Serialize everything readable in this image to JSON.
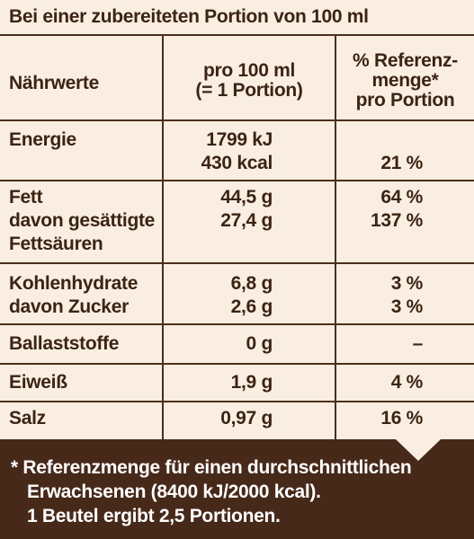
{
  "header": "Bei einer zubereiteten Portion von 100 ml",
  "columns": {
    "c1": "Nährwerte",
    "c2": [
      "pro 100 ml",
      "(= 1 Portion)"
    ],
    "c3": [
      "% Referenz-",
      "menge*",
      "pro Portion"
    ]
  },
  "rows": [
    {
      "name": [
        "Energie",
        ""
      ],
      "value": [
        "1799 kJ",
        "430 kcal"
      ],
      "ref": [
        "",
        "21 %"
      ]
    },
    {
      "name": [
        "Fett",
        "davon gesättigte",
        "Fettsäuren"
      ],
      "value": [
        "44,5 g",
        "27,4 g",
        ""
      ],
      "ref": [
        "64 %",
        "137 %",
        ""
      ]
    },
    {
      "name": [
        "Kohlenhydrate",
        "davon Zucker"
      ],
      "value": [
        "6,8 g",
        "2,6 g"
      ],
      "ref": [
        "3 %",
        "3 %"
      ]
    },
    {
      "name": [
        "Ballaststoffe"
      ],
      "value": [
        "0 g"
      ],
      "ref": [
        "–"
      ]
    },
    {
      "name": [
        "Eiweiß"
      ],
      "value": [
        "1,9 g"
      ],
      "ref": [
        "4 %"
      ]
    },
    {
      "name": [
        "Salz"
      ],
      "value": [
        "0,97 g"
      ],
      "ref": [
        "16 %"
      ]
    }
  ],
  "footer": [
    "* Referenzmenge für einen durchschnittlichen",
    "   Erwachsenen (8400 kJ/2000 kcal).",
    "   1 Beutel ergibt 2,5 Portionen."
  ]
}
